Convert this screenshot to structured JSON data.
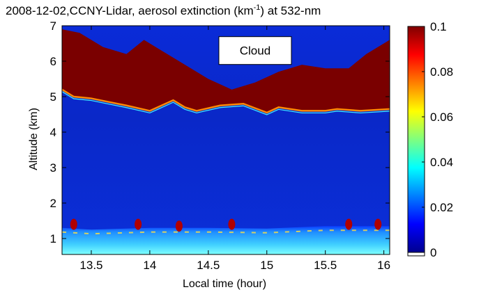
{
  "chart_data": {
    "type": "heatmap",
    "title": {
      "prefix": "2008-12-02,CCNY-Lidar, aerosol extinction (km",
      "exponent": "-1",
      "suffix": ") at 532-nm"
    },
    "xlabel": "Local time (hour)",
    "ylabel": "Altitude (km)",
    "xlim": [
      13.25,
      16.05
    ],
    "ylim": [
      0.55,
      7.0
    ],
    "x_ticks": [
      "13.5",
      "14",
      "14.5",
      "15",
      "15.5",
      "16"
    ],
    "y_ticks": [
      "1",
      "2",
      "3",
      "4",
      "5",
      "6",
      "7"
    ],
    "colorbar": {
      "range": [
        0,
        0.1
      ],
      "ticks": [
        "0",
        "0.02",
        "0.04",
        "0.06",
        "0.08",
        "0.1"
      ],
      "colormap": "jet"
    },
    "annotation": {
      "text": "Cloud",
      "x": 14.9,
      "y": 6.3
    },
    "cloud_base_km": [
      [
        13.25,
        5.2
      ],
      [
        13.35,
        5.0
      ],
      [
        13.5,
        4.95
      ],
      [
        13.65,
        4.85
      ],
      [
        13.8,
        4.75
      ],
      [
        14.0,
        4.6
      ],
      [
        14.1,
        4.75
      ],
      [
        14.2,
        4.9
      ],
      [
        14.3,
        4.7
      ],
      [
        14.4,
        4.6
      ],
      [
        14.6,
        4.75
      ],
      [
        14.8,
        4.8
      ],
      [
        15.0,
        4.55
      ],
      [
        15.1,
        4.7
      ],
      [
        15.3,
        4.6
      ],
      [
        15.5,
        4.6
      ],
      [
        15.6,
        4.65
      ],
      [
        15.8,
        4.6
      ],
      [
        16.05,
        4.65
      ]
    ],
    "cloud_top_km": [
      [
        13.25,
        6.9
      ],
      [
        13.4,
        6.8
      ],
      [
        13.6,
        6.4
      ],
      [
        13.8,
        6.2
      ],
      [
        13.95,
        6.6
      ],
      [
        14.1,
        6.3
      ],
      [
        14.3,
        5.9
      ],
      [
        14.5,
        5.5
      ],
      [
        14.7,
        5.2
      ],
      [
        14.9,
        5.4
      ],
      [
        15.1,
        5.7
      ],
      [
        15.3,
        5.9
      ],
      [
        15.5,
        5.8
      ],
      [
        15.7,
        5.8
      ],
      [
        15.85,
        6.2
      ],
      [
        16.05,
        6.6
      ]
    ],
    "boundary_layer_top_km": [
      [
        13.25,
        1.3
      ],
      [
        13.5,
        1.25
      ],
      [
        14.0,
        1.3
      ],
      [
        14.5,
        1.3
      ],
      [
        15.0,
        1.28
      ],
      [
        15.5,
        1.35
      ],
      [
        16.05,
        1.35
      ]
    ],
    "aerosol_hotspots_km": [
      [
        13.35,
        1.4
      ],
      [
        13.9,
        1.4
      ],
      [
        14.25,
        1.35
      ],
      [
        14.7,
        1.4
      ],
      [
        15.7,
        1.4
      ],
      [
        15.95,
        1.4
      ]
    ]
  }
}
